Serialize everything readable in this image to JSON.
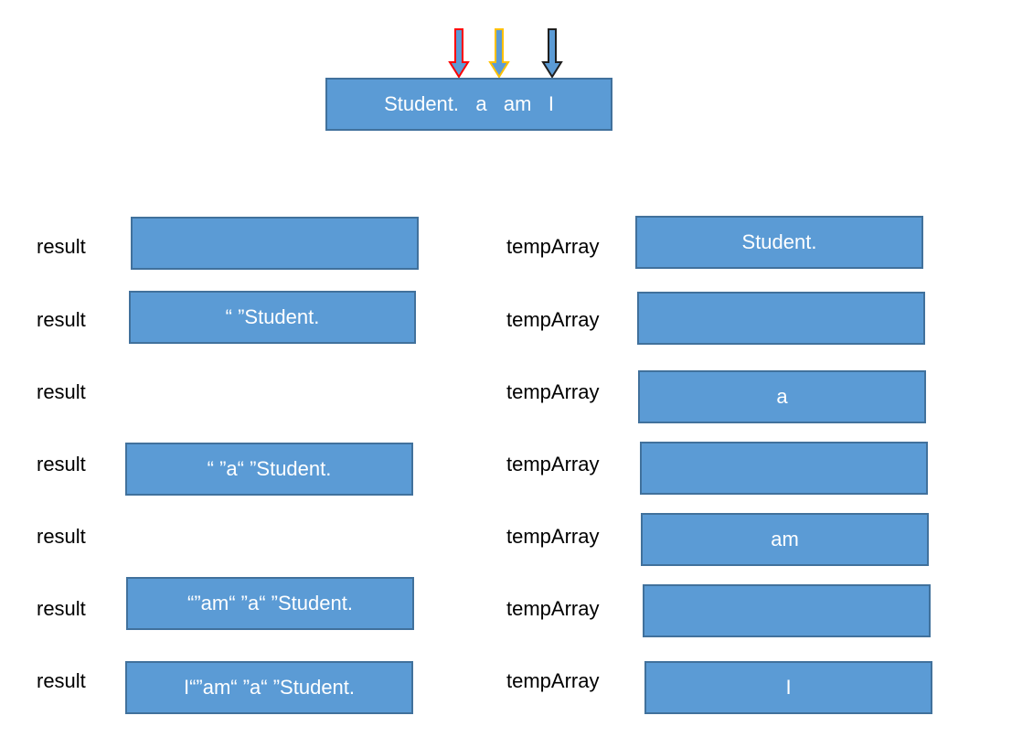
{
  "source": {
    "text": "Student.   a   am   I"
  },
  "arrows": [
    {
      "name": "red-arrow-icon",
      "color": "#FF0000"
    },
    {
      "name": "yellow-arrow-icon",
      "color": "#FFC000"
    },
    {
      "name": "black-arrow-icon",
      "color": "#1F1F1F"
    }
  ],
  "colors": {
    "box_fill": "#5B9BD5",
    "box_border": "#41719C"
  },
  "rows": [
    {
      "result_label": "result",
      "result_value": "",
      "temp_label": "tempArray",
      "temp_value": "Student."
    },
    {
      "result_label": "result",
      "result_value": "“ ”Student.",
      "temp_label": "tempArray",
      "temp_value": ""
    },
    {
      "result_label": "result",
      "temp_label": "tempArray",
      "temp_value": "a"
    },
    {
      "result_label": "result",
      "result_value": "“ ”a“ ”Student.",
      "temp_label": "tempArray",
      "temp_value": ""
    },
    {
      "result_label": "result",
      "temp_label": "tempArray",
      "temp_value": "am"
    },
    {
      "result_label": "result",
      "result_value": "“”am“ ”a“ ”Student.",
      "temp_label": "tempArray",
      "temp_value": ""
    },
    {
      "result_label": "result",
      "result_value": "I“”am“ ”a“ ”Student.",
      "temp_label": "tempArray",
      "temp_value": "I"
    }
  ]
}
